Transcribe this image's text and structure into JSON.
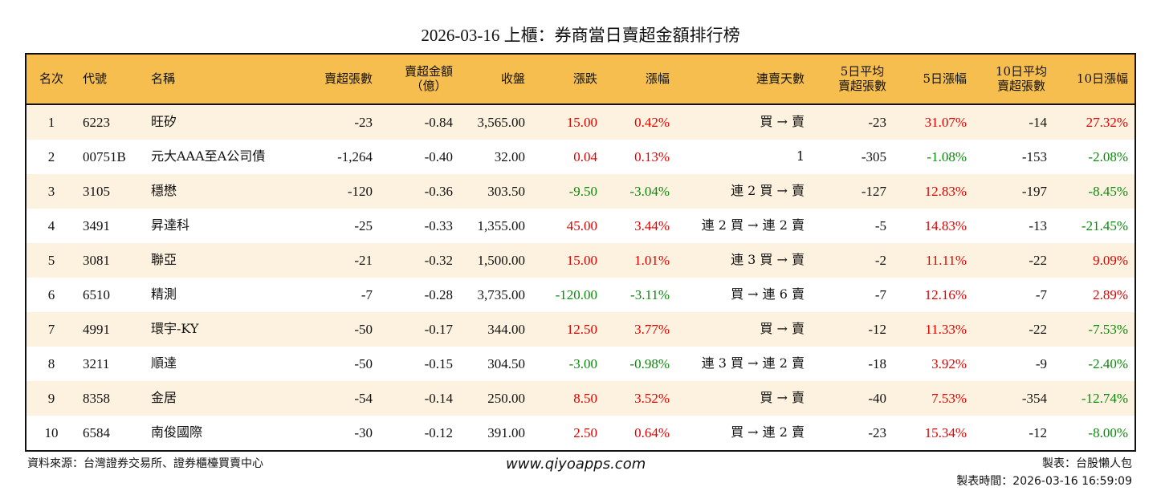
{
  "title": "2026-03-16 上櫃：券商當日賣超金額排行榜",
  "headers": [
    "名次",
    "代號",
    "名稱",
    "賣超張數",
    "賣超金額\n（億）",
    "收盤",
    "漲跌",
    "漲幅",
    "連賣天數",
    "5日平均\n賣超張數",
    "5日漲幅",
    "10日平均\n賣超張數",
    "10日漲幅"
  ],
  "colors": {
    "header_bg": "#F5BE4F",
    "odd_row_bg": "#FDF2DF",
    "up": "#e00000",
    "down": "#0a8a0a"
  },
  "rows": [
    [
      "1",
      "6223",
      "旺矽",
      "-23",
      "-0.84",
      "3,565.00",
      "15.00",
      "0.42%",
      "買 → 賣",
      "-23",
      "31.07%",
      "-14",
      "27.32%"
    ],
    [
      "2",
      "00751B",
      "元大AAA至A公司債",
      "-1,264",
      "-0.40",
      "32.00",
      "0.04",
      "0.13%",
      "1",
      "-305",
      "-1.08%",
      "-153",
      "-2.08%"
    ],
    [
      "3",
      "3105",
      "穩懋",
      "-120",
      "-0.36",
      "303.50",
      "-9.50",
      "-3.04%",
      "連 2 買 → 賣",
      "-127",
      "12.83%",
      "-197",
      "-8.45%"
    ],
    [
      "4",
      "3491",
      "昇達科",
      "-25",
      "-0.33",
      "1,355.00",
      "45.00",
      "3.44%",
      "連 2 買 → 連 2 賣",
      "-5",
      "14.83%",
      "-13",
      "-21.45%"
    ],
    [
      "5",
      "3081",
      "聯亞",
      "-21",
      "-0.32",
      "1,500.00",
      "15.00",
      "1.01%",
      "連 3 買 → 賣",
      "-2",
      "11.11%",
      "-22",
      "9.09%"
    ],
    [
      "6",
      "6510",
      "精測",
      "-7",
      "-0.28",
      "3,735.00",
      "-120.00",
      "-3.11%",
      "買 → 連 6 賣",
      "-7",
      "12.16%",
      "-7",
      "2.89%"
    ],
    [
      "7",
      "4991",
      "環宇-KY",
      "-50",
      "-0.17",
      "344.00",
      "12.50",
      "3.77%",
      "買 → 賣",
      "-12",
      "11.33%",
      "-22",
      "-7.53%"
    ],
    [
      "8",
      "3211",
      "順達",
      "-50",
      "-0.15",
      "304.50",
      "-3.00",
      "-0.98%",
      "連 3 買 → 連 2 賣",
      "-18",
      "3.92%",
      "-9",
      "-2.40%"
    ],
    [
      "9",
      "8358",
      "金居",
      "-54",
      "-0.14",
      "250.00",
      "8.50",
      "3.52%",
      "買 → 賣",
      "-40",
      "7.53%",
      "-354",
      "-12.74%"
    ],
    [
      "10",
      "6584",
      "南俊國際",
      "-30",
      "-0.12",
      "391.00",
      "2.50",
      "0.64%",
      "買 → 連 2 賣",
      "-23",
      "15.34%",
      "-12",
      "-8.00%"
    ]
  ],
  "footer": {
    "source": "資料來源：台灣證券交易所、證券櫃檯買賣中心",
    "website": "www.qiyoapps.com",
    "maker": "製表：台股懶人包",
    "time": "製表時間：2026-03-16 16:59:09"
  }
}
